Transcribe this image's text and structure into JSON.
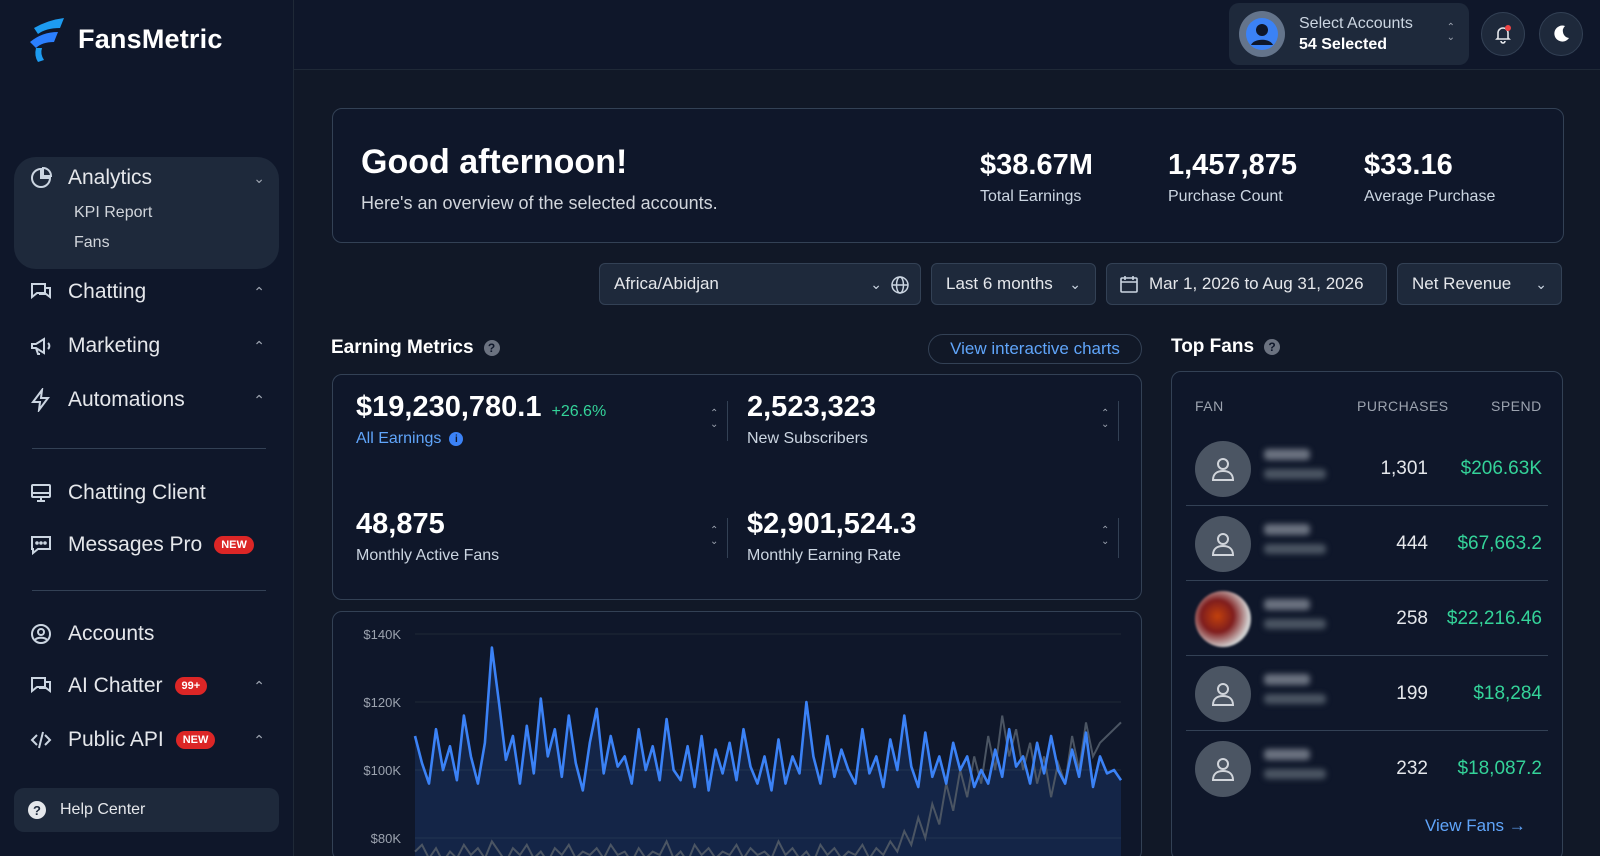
{
  "app": {
    "name": "FansMetric"
  },
  "sidebar": {
    "analytics": {
      "label": "Analytics",
      "sub": [
        "KPI Report",
        "Fans"
      ]
    },
    "items": [
      {
        "label": "Chatting"
      },
      {
        "label": "Marketing"
      },
      {
        "label": "Automations"
      },
      {
        "label": "Chatting Client"
      },
      {
        "label": "Messages Pro",
        "badge": "NEW"
      },
      {
        "label": "Accounts"
      },
      {
        "label": "AI Chatter",
        "badge": "99+"
      },
      {
        "label": "Public API",
        "badge": "NEW"
      }
    ],
    "help": "Help Center"
  },
  "header": {
    "accounts_label": "Select Accounts",
    "accounts_value": "54 Selected"
  },
  "welcome": {
    "greeting": "Good afternoon!",
    "subtitle": "Here's an overview of the selected accounts.",
    "kpis": [
      {
        "value": "$38.67M",
        "caption": "Total Earnings"
      },
      {
        "value": "1,457,875",
        "caption": "Purchase Count"
      },
      {
        "value": "$33.16",
        "caption": "Average Purchase"
      }
    ]
  },
  "filters": {
    "timezone": "Africa/Abidjan",
    "period": "Last 6 months",
    "date_range": "Mar 1, 2026 to Aug 31, 2026",
    "metric": "Net Revenue"
  },
  "earning_metrics": {
    "title": "Earning Metrics",
    "view_charts": "View interactive charts",
    "items": [
      {
        "value": "$19,230,780.1",
        "change": "+26.6%",
        "caption": "All Earnings"
      },
      {
        "value": "2,523,323",
        "caption": "New Subscribers"
      },
      {
        "value": "48,875",
        "caption": "Monthly Active Fans"
      },
      {
        "value": "$2,901,524.3",
        "caption": "Monthly Earning Rate"
      }
    ]
  },
  "chart_data": {
    "type": "line",
    "title": "",
    "xlabel": "",
    "ylabel": "",
    "y_ticks": [
      "$140K",
      "$120K",
      "$100K",
      "$80K"
    ],
    "ylim": [
      80000,
      140000
    ],
    "series": [
      {
        "values": [
          110000,
          102000,
          96000,
          112000,
          100000,
          107000,
          97000,
          116000,
          104000,
          96000,
          108000,
          136000,
          120000,
          103000,
          110000,
          96000,
          113000,
          99000,
          121000,
          104000,
          112000,
          98000,
          116000,
          102000,
          94000,
          108000,
          118000,
          99000,
          110000,
          101000,
          104000,
          96000,
          112000,
          100000,
          107000,
          97000,
          115000,
          100000,
          97000,
          107000,
          95000,
          110000,
          94000,
          106000,
          99000,
          108000,
          97000,
          112000,
          101000,
          96000,
          104000,
          94000,
          109000,
          96000,
          104000,
          99000,
          120000,
          104000,
          96000,
          110000,
          98000,
          106000,
          100000,
          96000,
          112000,
          99000,
          104000,
          95000,
          109000,
          100000,
          116000,
          101000,
          95000,
          111000,
          98000,
          104000,
          96000,
          108000,
          100000,
          104000,
          95000,
          100000,
          96000,
          106000,
          98000,
          112000,
          101000,
          104000,
          96000,
          108000,
          99000,
          110000,
          100000,
          96000,
          106000,
          98000,
          111000,
          95000,
          104000,
          99000,
          100000,
          97000
        ]
      },
      {
        "values": [
          76000,
          78000,
          74000,
          77000,
          73000,
          76000,
          74000,
          78000,
          75000,
          77000,
          74000,
          79000,
          76000,
          73000,
          77000,
          75000,
          78000,
          74000,
          76000,
          73000,
          77000,
          75000,
          78000,
          74000,
          76000,
          75000,
          77000,
          74000,
          78000,
          75000,
          76000,
          73000,
          77000,
          74000,
          76000,
          75000,
          79000,
          74000,
          76000,
          73000,
          78000,
          75000,
          77000,
          74000,
          76000,
          75000,
          78000,
          74000,
          77000,
          75000,
          76000,
          74000,
          79000,
          75000,
          77000,
          74000,
          76000,
          73000,
          78000,
          75000,
          77000,
          74000,
          76000,
          75000,
          78000,
          74000,
          77000,
          75000,
          79000,
          76000,
          82000,
          78000,
          86000,
          80000,
          90000,
          84000,
          96000,
          88000,
          100000,
          92000,
          104000,
          96000,
          110000,
          100000,
          116000,
          104000,
          112000,
          100000,
          108000,
          96000,
          104000,
          92000,
          102000,
          96000,
          110000,
          100000,
          114000,
          104000,
          108000,
          110000,
          112000,
          114000
        ]
      }
    ]
  },
  "top_fans": {
    "title": "Top Fans",
    "columns": [
      "FAN",
      "PURCHASES",
      "SPEND"
    ],
    "rows": [
      {
        "purchases": "1,301",
        "spend": "$206.63K"
      },
      {
        "purchases": "444",
        "spend": "$67,663.2"
      },
      {
        "purchases": "258",
        "spend": "$22,216.46"
      },
      {
        "purchases": "199",
        "spend": "$18,284"
      },
      {
        "purchases": "232",
        "spend": "$18,087.2"
      }
    ],
    "view_all": "View Fans →"
  }
}
